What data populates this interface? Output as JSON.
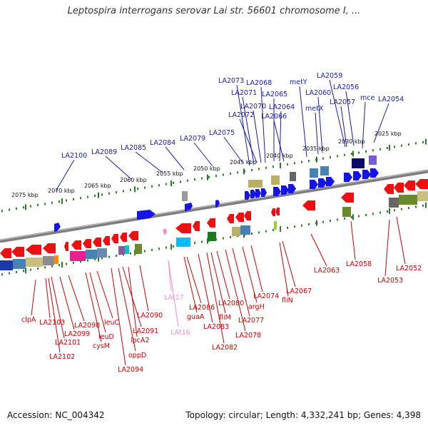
{
  "title": "Leptospira interrogans serovar Lai str. 56601 chromosome I, ...",
  "accession": {
    "label": "Accession:",
    "value": "NC_004342"
  },
  "topology": "Topology: circular; Length: 4,332,241 bp; Genes: 4,398",
  "scale_labels": [
    "2075 kbp",
    "2070 kbp",
    "2065 kbp",
    "2060 kbp",
    "2055 kbp",
    "2050 kbp",
    "2045 kbp",
    "2040 kbp",
    "2035 kbp",
    "2030 kbp",
    "2025 kbp"
  ],
  "outer_labels": [
    "LA2100",
    "LA2089",
    "LA2085",
    "LA2084",
    "LA2079",
    "LA2075",
    "LA2073",
    "LA2071",
    "LA2072",
    "LA2070",
    "LA2068",
    "LA2065",
    "LA2064",
    "LA2066",
    "metY",
    "LA2060",
    "metX",
    "LA2059",
    "LA2056",
    "LA2057",
    "mce",
    "LA2054"
  ],
  "inner_labels": [
    "clpA",
    "LA2103",
    "LA2101",
    "LA2102",
    "LA2099",
    "LA2098",
    "leuD",
    "cysM",
    "leuC",
    "LA2094",
    "oppD",
    "LA2091",
    "lpcA2",
    "LA2090",
    "guaA",
    "LA2086",
    "LA2083",
    "LA2082",
    "fliM",
    "LA2080",
    "LA2078",
    "LA2077",
    "argH",
    "LA2074",
    "fliN",
    "LA2067",
    "LA2063",
    "LA2058",
    "LA2053",
    "LA2052"
  ],
  "trna_labels": [
    "LAt17",
    "LAt16"
  ],
  "colors": {
    "plus_strand": "#0000ee",
    "minus_strand": "#ee0000",
    "backbone": "#888888",
    "scale_ticks": "#2a7a2a",
    "outer_label": "#1a1aaa",
    "inner_label": "#cc0000",
    "trna": "#ee8fcf"
  }
}
